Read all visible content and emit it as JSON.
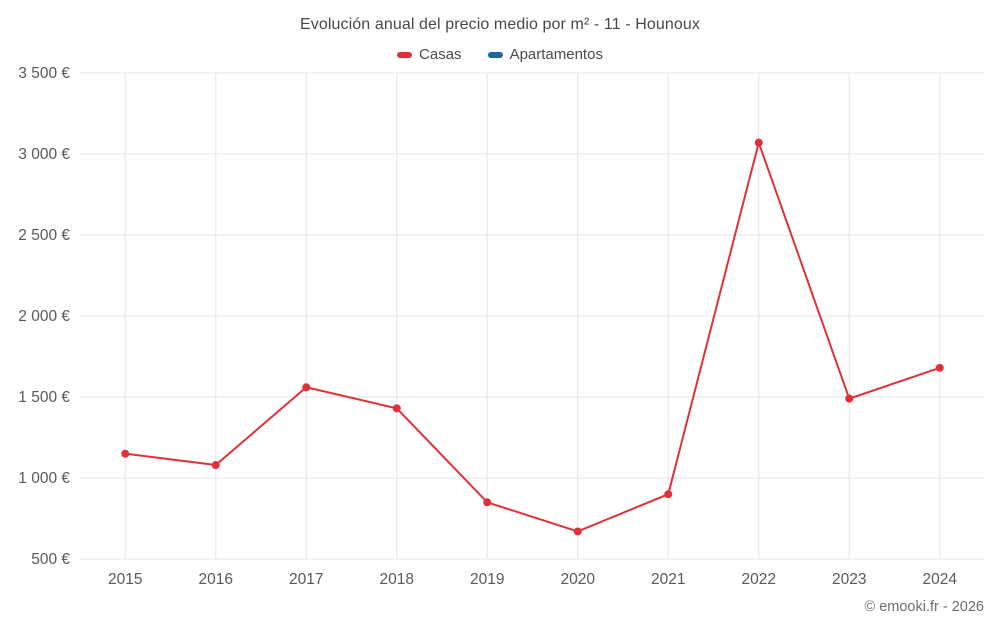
{
  "chart_data": {
    "type": "line",
    "title": "Evolución anual del precio medio por m² - 11 - Hounoux",
    "categories": [
      "2015",
      "2016",
      "2017",
      "2018",
      "2019",
      "2020",
      "2021",
      "2022",
      "2023",
      "2024"
    ],
    "series": [
      {
        "name": "Casas",
        "color": "#e0313a",
        "values": [
          1150,
          1080,
          1560,
          1430,
          850,
          670,
          900,
          3070,
          1490,
          1680
        ]
      },
      {
        "name": "Apartamentos",
        "color": "#17699e",
        "values": []
      }
    ],
    "ylim": [
      500,
      3500
    ],
    "ytick_values": [
      500,
      1000,
      1500,
      2000,
      2500,
      3000,
      3500
    ],
    "ytick_labels": [
      "500 €",
      "1 000 €",
      "1 500 €",
      "2 000 €",
      "2 500 €",
      "3 000 €",
      "3 500 €"
    ],
    "grid": true,
    "legend_position": "top",
    "grid_color": "#e6e6e6",
    "axis_label_color": "#59595c"
  },
  "footer": {
    "credit": "© emooki.fr - 2026"
  }
}
